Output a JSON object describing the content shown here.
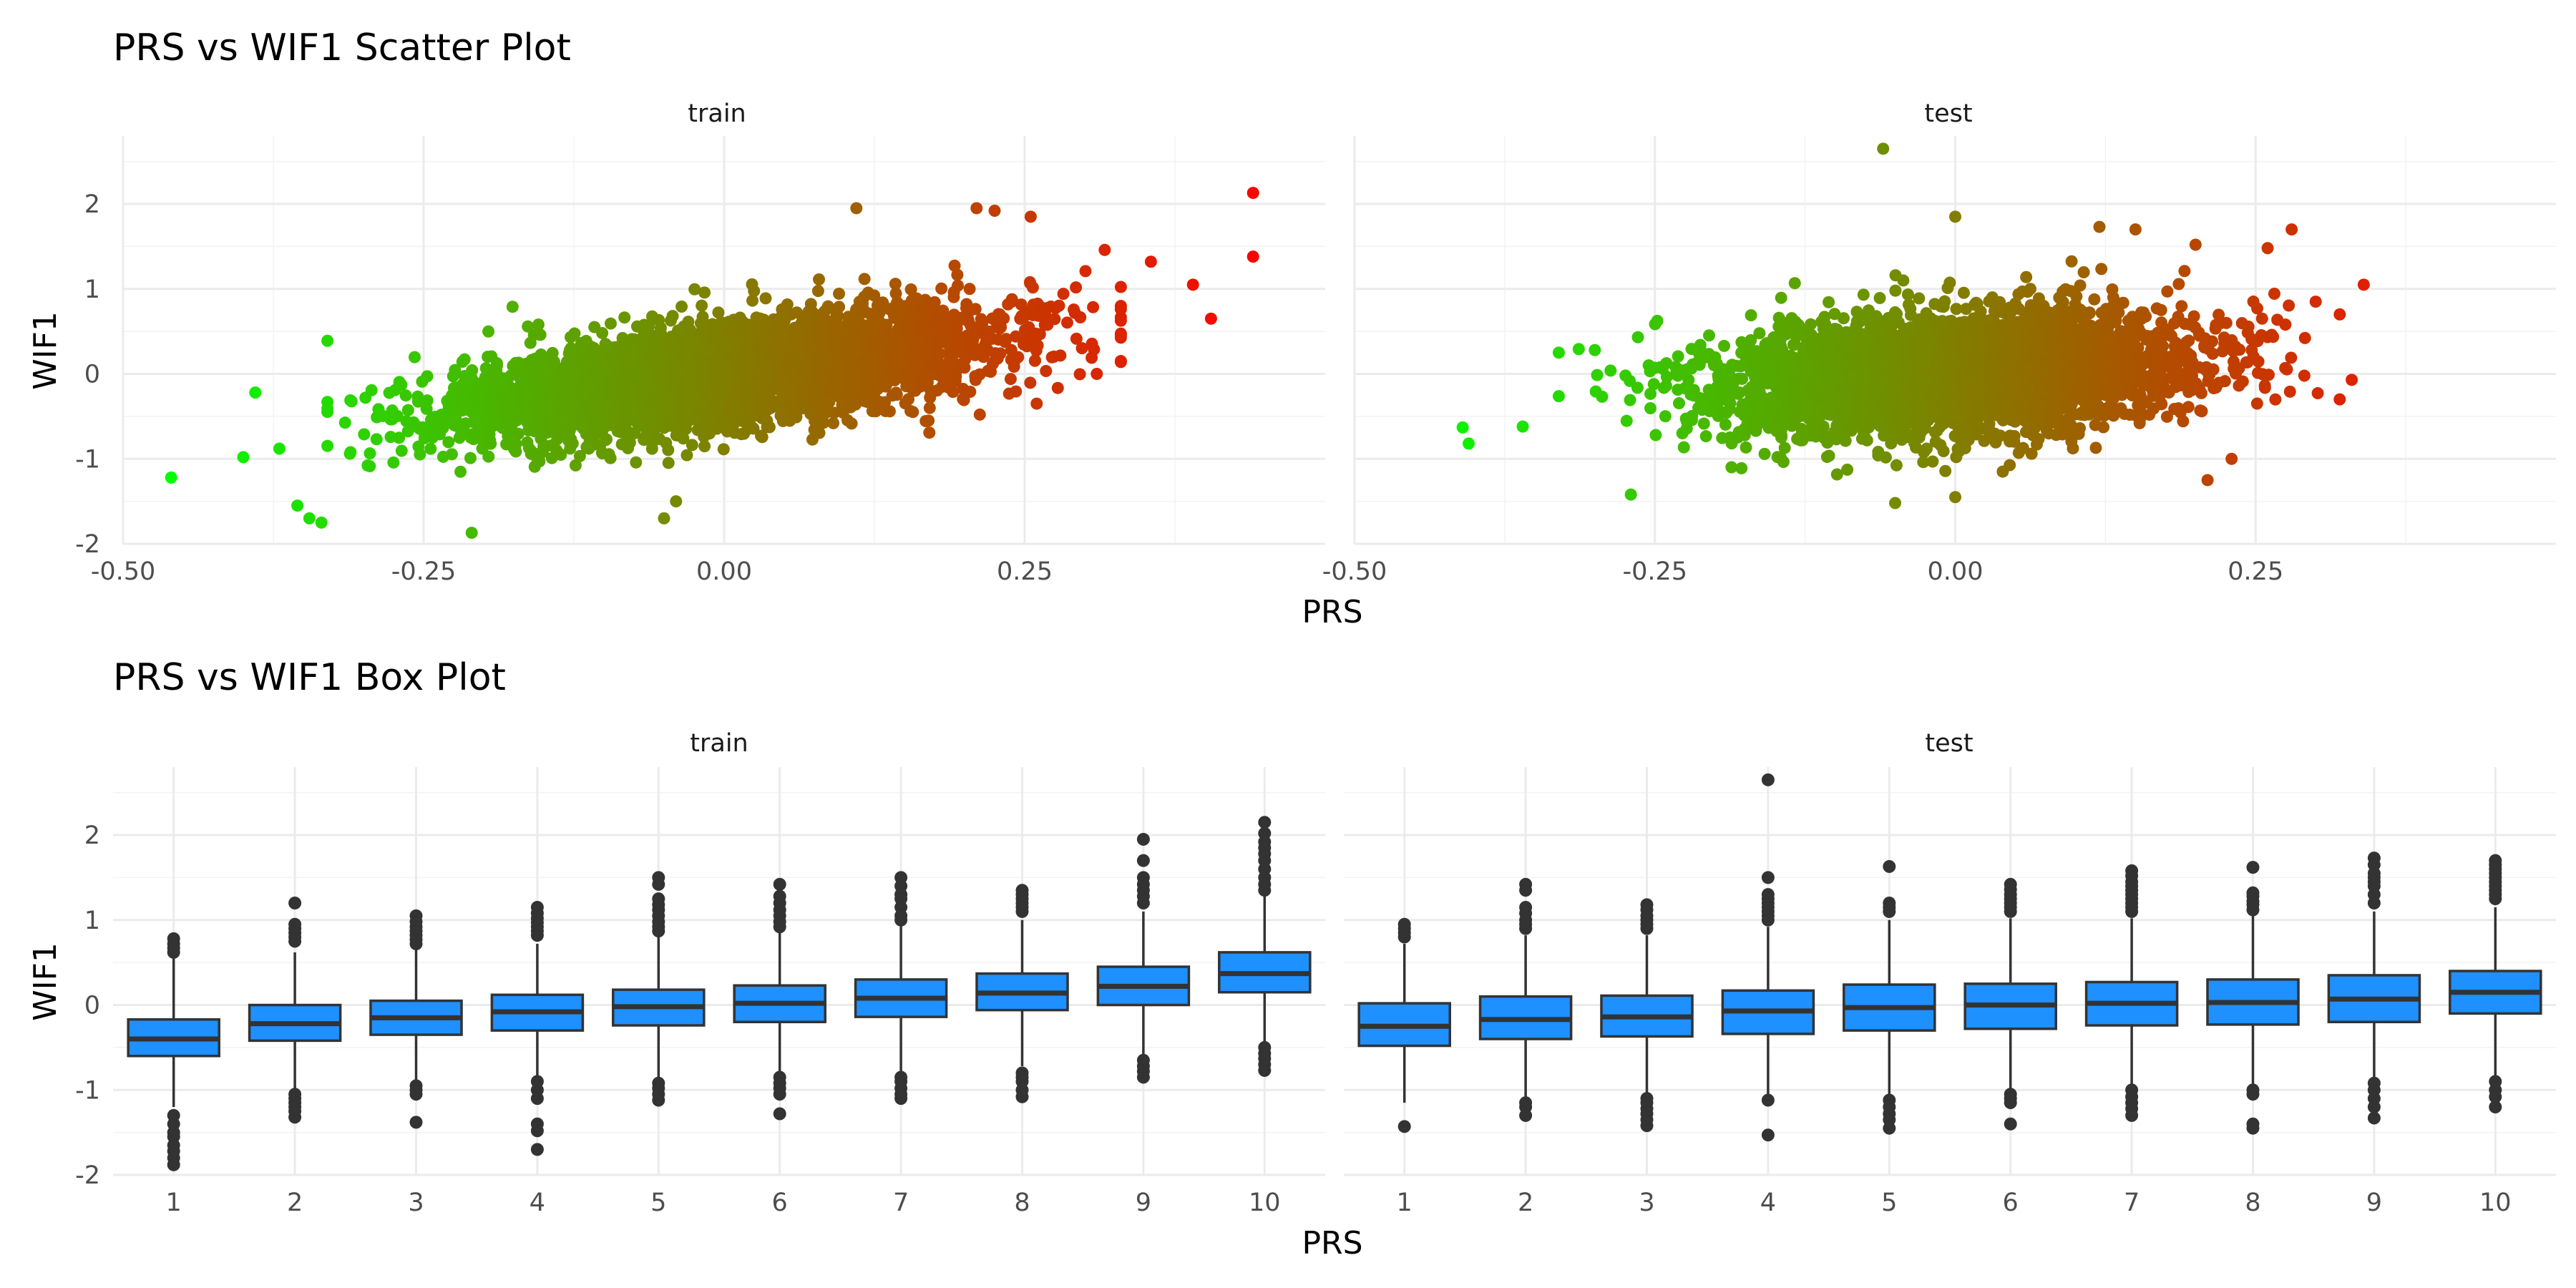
{
  "chart_data": [
    {
      "type": "scatter",
      "title": "PRS vs WIF1 Scatter Plot",
      "xlabel": "PRS",
      "ylabel": "WIF1",
      "xlim": [
        -0.5,
        0.5
      ],
      "ylim": [
        -2,
        2.8
      ],
      "x_ticks": [
        -0.5,
        -0.25,
        0.0,
        0.25
      ],
      "x_tick_labels": [
        "-0.50",
        "-0.25",
        "0.00",
        "0.25"
      ],
      "y_ticks": [
        -2,
        -1,
        0,
        1,
        2
      ],
      "y_tick_labels": [
        "-2",
        "-1",
        "0",
        "1",
        "2"
      ],
      "grid": true,
      "color_scale": {
        "low": "#00ff00",
        "high": "#ff0000",
        "low_value": -0.46,
        "high_value": 0.45
      },
      "panels": [
        {
          "name": "train",
          "bulk": {
            "x_mean": 0.0,
            "x_sd": 0.11,
            "slope": 1.9,
            "resid_sd": 0.3,
            "count": 4000,
            "seed": 11
          },
          "points": [
            [
              -0.46,
              -1.22
            ],
            [
              -0.4,
              -0.98
            ],
            [
              -0.39,
              -0.22
            ],
            [
              -0.37,
              -0.88
            ],
            [
              -0.355,
              -1.55
            ],
            [
              -0.345,
              -1.7
            ],
            [
              -0.335,
              -1.75
            ],
            [
              -0.21,
              -1.87
            ],
            [
              -0.05,
              -1.7
            ],
            [
              -0.04,
              -1.5
            ],
            [
              0.11,
              1.95
            ],
            [
              0.21,
              1.95
            ],
            [
              0.225,
              1.92
            ],
            [
              0.255,
              1.85
            ],
            [
              0.31,
              0.0
            ],
            [
              0.355,
              1.32
            ],
            [
              0.39,
              1.05
            ],
            [
              0.405,
              0.65
            ],
            [
              0.44,
              2.13
            ],
            [
              0.44,
              1.38
            ],
            [
              0.26,
              -0.35
            ],
            [
              0.17,
              -0.55
            ]
          ]
        },
        {
          "name": "test",
          "bulk": {
            "x_mean": 0.0,
            "x_sd": 0.1,
            "slope": 0.8,
            "resid_sd": 0.35,
            "count": 3500,
            "seed": 23
          },
          "points": [
            [
              -0.41,
              -0.63
            ],
            [
              -0.405,
              -0.82
            ],
            [
              -0.36,
              -0.62
            ],
            [
              -0.33,
              0.25
            ],
            [
              -0.3,
              0.28
            ],
            [
              -0.27,
              -1.42
            ],
            [
              -0.06,
              2.65
            ],
            [
              0.0,
              1.85
            ],
            [
              0.12,
              1.73
            ],
            [
              0.15,
              1.7
            ],
            [
              0.2,
              1.52
            ],
            [
              0.26,
              1.48
            ],
            [
              0.28,
              1.7
            ],
            [
              0.3,
              0.85
            ],
            [
              0.32,
              0.7
            ],
            [
              0.34,
              1.05
            ],
            [
              0.32,
              -0.3
            ],
            [
              0.33,
              -0.07
            ],
            [
              0.21,
              -1.25
            ],
            [
              0.23,
              -1.0
            ],
            [
              0.0,
              -1.45
            ],
            [
              -0.05,
              -1.52
            ]
          ]
        }
      ]
    },
    {
      "type": "box",
      "title": "PRS vs WIF1 Box Plot",
      "xlabel": "PRS",
      "ylabel": "WIF1",
      "categories": [
        "1",
        "2",
        "3",
        "4",
        "5",
        "6",
        "7",
        "8",
        "9",
        "10"
      ],
      "ylim": [
        -2,
        2.8
      ],
      "y_ticks": [
        -2,
        -1,
        0,
        1,
        2
      ],
      "y_tick_labels": [
        "-2",
        "-1",
        "0",
        "1",
        "2"
      ],
      "grid": true,
      "box_fill": "#1e90ff",
      "box_stroke": "#333333",
      "panels": [
        {
          "name": "train",
          "boxes": [
            {
              "q1": -0.6,
              "median": -0.4,
              "q3": -0.17,
              "whisker_low": -1.2,
              "whisker_high": 0.55,
              "outliers": [
                0.78,
                0.72,
                0.67,
                0.62,
                -1.3,
                -1.4,
                -1.5,
                -1.55,
                -1.65,
                -1.72,
                -1.8,
                -1.88
              ]
            },
            {
              "q1": -0.42,
              "median": -0.22,
              "q3": 0.0,
              "whisker_low": -1.0,
              "whisker_high": 0.62,
              "outliers": [
                1.2,
                0.95,
                0.9,
                0.85,
                0.8,
                0.75,
                -1.05,
                -1.1,
                -1.15,
                -1.2,
                -1.25,
                -1.32
              ]
            },
            {
              "q1": -0.35,
              "median": -0.15,
              "q3": 0.05,
              "whisker_low": -0.9,
              "whisker_high": 0.65,
              "outliers": [
                1.05,
                0.98,
                0.92,
                0.87,
                0.82,
                0.77,
                0.72,
                -0.95,
                -1.0,
                -1.05,
                -1.38
              ]
            },
            {
              "q1": -0.3,
              "median": -0.08,
              "q3": 0.12,
              "whisker_low": -0.85,
              "whisker_high": 0.72,
              "outliers": [
                1.15,
                1.08,
                1.02,
                0.97,
                0.92,
                0.87,
                0.82,
                -0.9,
                -1.0,
                -1.1,
                -1.4,
                -1.48,
                -1.7
              ]
            },
            {
              "q1": -0.24,
              "median": -0.02,
              "q3": 0.18,
              "whisker_low": -0.85,
              "whisker_high": 0.8,
              "outliers": [
                1.5,
                1.42,
                1.25,
                1.18,
                1.12,
                1.05,
                0.98,
                0.92,
                0.87,
                -0.92,
                -0.98,
                -1.05,
                -1.12
              ]
            },
            {
              "q1": -0.2,
              "median": 0.02,
              "q3": 0.23,
              "whisker_low": -0.82,
              "whisker_high": 0.85,
              "outliers": [
                1.42,
                1.28,
                1.2,
                1.12,
                1.05,
                0.98,
                0.92,
                -0.85,
                -0.92,
                -0.98,
                -1.05,
                -1.28
              ]
            },
            {
              "q1": -0.14,
              "median": 0.08,
              "q3": 0.3,
              "whisker_low": -0.78,
              "whisker_high": 0.95,
              "outliers": [
                1.5,
                1.4,
                1.3,
                1.25,
                1.15,
                1.05,
                1.0,
                -0.85,
                -0.9,
                -0.98,
                -1.05,
                -1.1
              ]
            },
            {
              "q1": -0.06,
              "median": 0.14,
              "q3": 0.37,
              "whisker_low": -0.72,
              "whisker_high": 1.0,
              "outliers": [
                1.35,
                1.3,
                1.25,
                1.2,
                1.15,
                1.1,
                -0.8,
                -0.85,
                -0.9,
                -1.0,
                -1.08
              ]
            },
            {
              "q1": 0.0,
              "median": 0.22,
              "q3": 0.45,
              "whisker_low": -0.6,
              "whisker_high": 1.1,
              "outliers": [
                1.95,
                1.7,
                1.5,
                1.42,
                1.35,
                1.28,
                1.2,
                -0.65,
                -0.72,
                -0.78,
                -0.85
              ]
            },
            {
              "q1": 0.15,
              "median": 0.37,
              "q3": 0.62,
              "whisker_low": -0.45,
              "whisker_high": 1.28,
              "outliers": [
                2.15,
                2.02,
                1.92,
                1.85,
                1.78,
                1.7,
                1.6,
                1.5,
                1.42,
                1.35,
                -0.5,
                -0.57,
                -0.63,
                -0.7,
                -0.77
              ]
            }
          ]
        },
        {
          "name": "test",
          "boxes": [
            {
              "q1": -0.48,
              "median": -0.25,
              "q3": 0.02,
              "whisker_low": -1.15,
              "whisker_high": 0.72,
              "outliers": [
                0.95,
                0.9,
                0.85,
                0.8,
                -1.43
              ]
            },
            {
              "q1": -0.4,
              "median": -0.17,
              "q3": 0.1,
              "whisker_low": -1.1,
              "whisker_high": 0.82,
              "outliers": [
                1.42,
                1.35,
                1.15,
                1.08,
                1.0,
                0.95,
                0.9,
                -1.15,
                -1.2,
                -1.3
              ]
            },
            {
              "q1": -0.37,
              "median": -0.14,
              "q3": 0.11,
              "whisker_low": -1.05,
              "whisker_high": 0.82,
              "outliers": [
                1.18,
                1.12,
                1.05,
                1.0,
                0.95,
                0.9,
                -1.1,
                -1.15,
                -1.22,
                -1.28,
                -1.35,
                -1.42
              ]
            },
            {
              "q1": -0.34,
              "median": -0.07,
              "q3": 0.17,
              "whisker_low": -1.1,
              "whisker_high": 0.92,
              "outliers": [
                2.65,
                1.5,
                1.3,
                1.25,
                1.2,
                1.15,
                1.1,
                1.05,
                1.0,
                -1.12,
                -1.53
              ]
            },
            {
              "q1": -0.3,
              "median": -0.03,
              "q3": 0.24,
              "whisker_low": -1.05,
              "whisker_high": 1.0,
              "outliers": [
                1.63,
                1.2,
                1.15,
                1.1,
                -1.12,
                -1.2,
                -1.28,
                -1.35,
                -1.45
              ]
            },
            {
              "q1": -0.28,
              "median": 0.0,
              "q3": 0.25,
              "whisker_low": -1.02,
              "whisker_high": 1.02,
              "outliers": [
                1.42,
                1.36,
                1.3,
                1.25,
                1.2,
                1.15,
                1.1,
                -1.05,
                -1.1,
                -1.15,
                -1.4
              ]
            },
            {
              "q1": -0.24,
              "median": 0.02,
              "q3": 0.27,
              "whisker_low": -0.95,
              "whisker_high": 1.02,
              "outliers": [
                1.58,
                1.52,
                1.45,
                1.4,
                1.35,
                1.3,
                1.25,
                1.2,
                1.15,
                1.1,
                -1.0,
                -1.08,
                -1.15,
                -1.22,
                -1.3
              ]
            },
            {
              "q1": -0.23,
              "median": 0.03,
              "q3": 0.3,
              "whisker_low": -0.95,
              "whisker_high": 1.05,
              "outliers": [
                1.62,
                1.32,
                1.28,
                1.22,
                1.18,
                1.12,
                -1.0,
                -1.05,
                -1.4,
                -1.45
              ]
            },
            {
              "q1": -0.2,
              "median": 0.07,
              "q3": 0.35,
              "whisker_low": -0.88,
              "whisker_high": 1.1,
              "outliers": [
                1.73,
                1.65,
                1.55,
                1.5,
                1.45,
                1.4,
                1.3,
                1.2,
                -0.92,
                -1.0,
                -1.1,
                -1.2,
                -1.33
              ]
            },
            {
              "q1": -0.1,
              "median": 0.15,
              "q3": 0.4,
              "whisker_low": -0.85,
              "whisker_high": 1.15,
              "outliers": [
                1.7,
                1.65,
                1.6,
                1.55,
                1.5,
                1.45,
                1.4,
                1.35,
                1.3,
                1.25,
                -0.9,
                -1.0,
                -1.08,
                -1.2
              ]
            }
          ]
        }
      ]
    }
  ]
}
